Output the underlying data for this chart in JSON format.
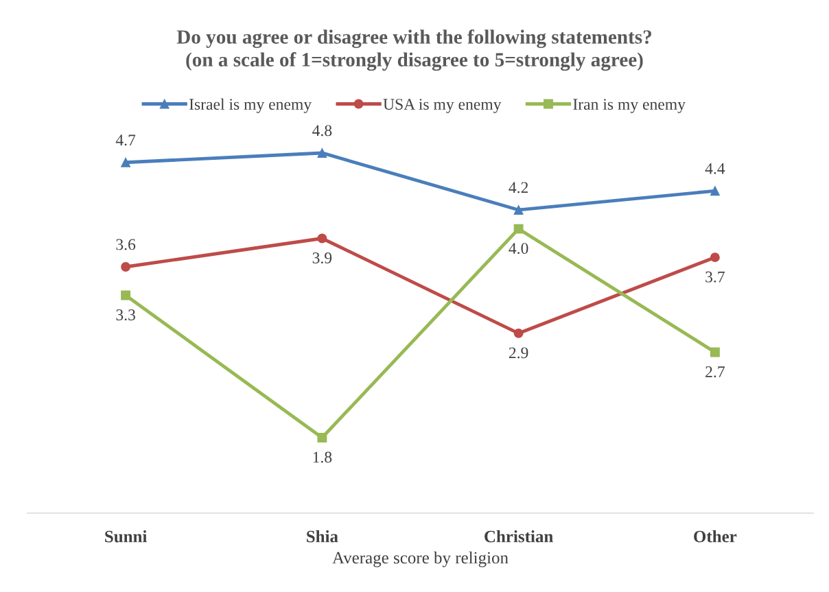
{
  "chart_data": {
    "type": "line",
    "title": "Do you agree or disagree with the following statements?\n(on a scale of 1=strongly disagree to 5=strongly agree)",
    "xlabel": "Average score by religion",
    "categories": [
      "Sunni",
      "Shia",
      "Christian",
      "Other"
    ],
    "series": [
      {
        "name": "Israel is my enemy",
        "color": "#4a7ebb",
        "marker": "triangle",
        "values": [
          4.7,
          4.8,
          4.2,
          4.4
        ],
        "value_labels": [
          "4.7",
          "4.8",
          "4.2",
          "4.4"
        ]
      },
      {
        "name": "USA is my enemy",
        "color": "#be4b48",
        "marker": "circle",
        "values": [
          3.6,
          3.9,
          2.9,
          3.7
        ],
        "value_labels": [
          "3.6",
          "3.9",
          "2.9",
          "3.7"
        ]
      },
      {
        "name": "Iran is my enemy",
        "color": "#98b954",
        "marker": "square",
        "values": [
          3.3,
          1.8,
          4.0,
          2.7
        ],
        "value_labels": [
          "3.3",
          "1.8",
          "4.0",
          "2.7"
        ]
      }
    ],
    "tick_labels": "x",
    "grid": false,
    "legend": "top",
    "line_style": "solid"
  }
}
